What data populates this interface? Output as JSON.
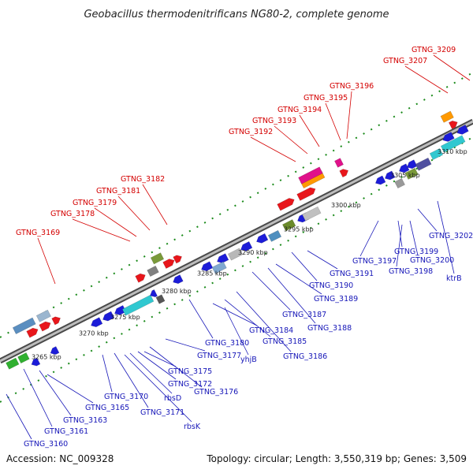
{
  "title": "Geobacillus thermodenitrificans NG80-2, complete genome",
  "footer": {
    "accession": "Accession: NC_009328",
    "stats": "Topology: circular; Length: 3,550,319 bp; Genes: 3,509"
  },
  "colors": {
    "strand_top": "#e8161b",
    "strand_bottom": "#1c1cd8",
    "backbone": "#8a8a8a",
    "tick_dots": "#1a8a1a",
    "label_top": "#d40000",
    "label_bottom": "#1616b8"
  },
  "scale_ticks": [
    "3265 kbp",
    "3270 kbp",
    "3275 kbp",
    "3280 kbp",
    "3285 kbp",
    "3290 kbp",
    "3295 kbp",
    "3300 kbp",
    "3305 kbp",
    "3310 kbp"
  ],
  "top_labels": [
    "GTNG_3169",
    "GTNG_3178",
    "GTNG_3179",
    "GTNG_3181",
    "GTNG_3182",
    "GTNG_3192",
    "GTNG_3193",
    "GTNG_3194",
    "GTNG_3195",
    "GTNG_3196",
    "GTNG_3207",
    "GTNG_3209"
  ],
  "bottom_labels": [
    "GTNG_3160",
    "GTNG_3161",
    "GTNG_3163",
    "GTNG_3165",
    "GTNG_3170",
    "GTNG_3171",
    "rbsK",
    "rbsD",
    "GTNG_3172",
    "GTNG_3175",
    "GTNG_3176",
    "GTNG_3177",
    "GTNG_3180",
    "yhjB",
    "GTNG_3184",
    "GTNG_3185",
    "GTNG_3186",
    "GTNG_3187",
    "GTNG_3188",
    "GTNG_3189",
    "GTNG_3190",
    "GTNG_3191",
    "GTNG_3197",
    "GTNG_3198",
    "GTNG_3199",
    "GTNG_3200",
    "GTNG_3202",
    "ktrB"
  ]
}
